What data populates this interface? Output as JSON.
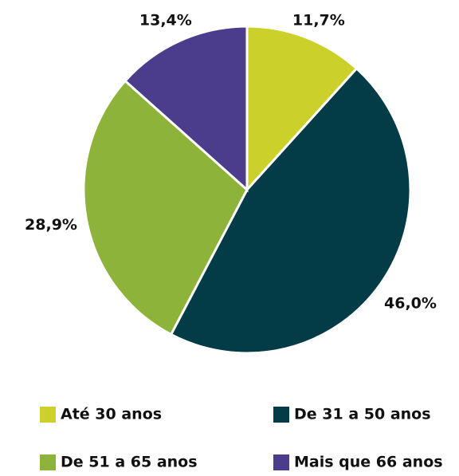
{
  "chart_data": {
    "type": "pie",
    "categories": [
      "Até 30 anos",
      "De 31 a 50 anos",
      "De 51 a 65 anos",
      "Mais que 66 anos"
    ],
    "values": [
      11.7,
      46.0,
      28.9,
      13.4
    ],
    "value_labels": [
      "11,7%",
      "46,0%",
      "28,9%",
      "13,4%"
    ],
    "colors": [
      "#cbd12a",
      "#033c46",
      "#8db33a",
      "#4b3d8c"
    ]
  }
}
